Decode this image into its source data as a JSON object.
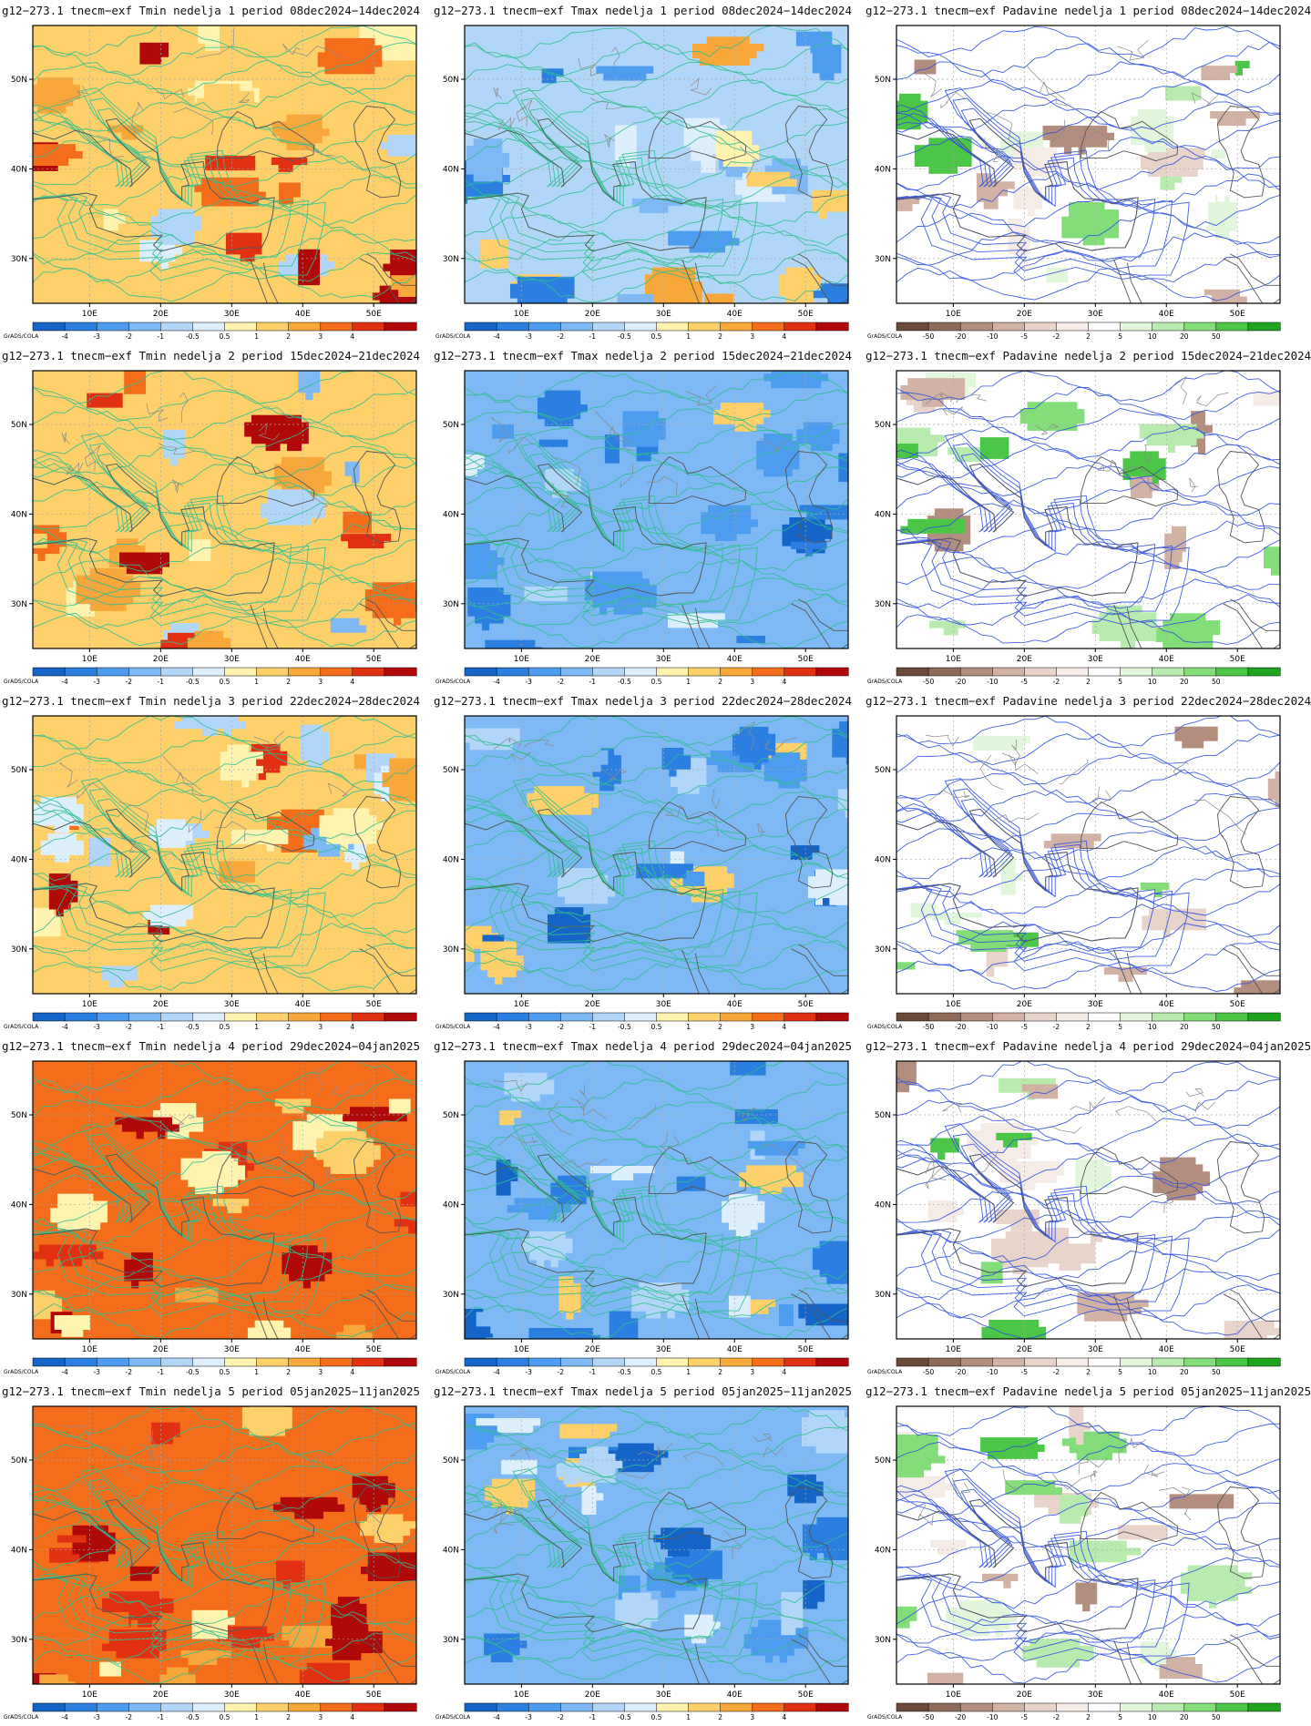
{
  "credit": "GrADS/COLA",
  "axes": {
    "lat_labels": [
      "30N",
      "40N",
      "50N"
    ],
    "lon_labels": [
      "10E",
      "20E",
      "30E",
      "40E",
      "50E"
    ]
  },
  "scales": {
    "temp": {
      "labels": [
        "-4",
        "-3",
        "-2",
        "-1",
        "-0.5",
        "0.5",
        "1",
        "2",
        "3",
        "4"
      ],
      "colors": [
        "#1565c8",
        "#2a7fe0",
        "#4d9cf0",
        "#7fb9f5",
        "#b2d6f8",
        "#ddeefc",
        "#fff3b0",
        "#fdd06a",
        "#f8a73a",
        "#f46d1a",
        "#e23112",
        "#b0090a"
      ]
    },
    "precip": {
      "labels": [
        "-50",
        "-20",
        "-10",
        "-5",
        "-2",
        "2",
        "5",
        "10",
        "20",
        "50"
      ],
      "colors": [
        "#6b4a3a",
        "#8f6a58",
        "#b38d7d",
        "#d2b2a4",
        "#e8d4cb",
        "#f6ece7",
        "#ffffff",
        "#e2f6dc",
        "#b8ecae",
        "#83dd78",
        "#4cc646",
        "#1fa41f"
      ]
    }
  },
  "rows": [
    {
      "tmin": {
        "title": "g12−273.1 tnecm−exf Tmin nedelja 1 period 08dec2024−14dec2024"
      },
      "tmax": {
        "title": "g12−273.1 tnecm−exf Tmax nedelja 1 period 08dec2024−14dec2024"
      },
      "prec": {
        "title": "g12−273.1 tnecm−exf Padavine nedelja 1 period 08dec2024−14dec2024"
      }
    },
    {
      "tmin": {
        "title": "g12−273.1 tnecm−exf Tmin nedelja 2 period 15dec2024−21dec2024"
      },
      "tmax": {
        "title": "g12−273.1 tnecm−exf Tmax nedelja 2 period 15dec2024−21dec2024"
      },
      "prec": {
        "title": "g12−273.1 tnecm−exf Padavine nedelja 2 period 15dec2024−21dec2024"
      }
    },
    {
      "tmin": {
        "title": "g12−273.1 tnecm−exf Tmin nedelja 3 period 22dec2024−28dec2024"
      },
      "tmax": {
        "title": "g12−273.1 tnecm−exf Tmax nedelja 3 period 22dec2024−28dec2024"
      },
      "prec": {
        "title": "g12−273.1 tnecm−exf Padavine nedelja 3 period 22dec2024−28dec2024"
      }
    },
    {
      "tmin": {
        "title": "g12−273.1 tnecm−exf Tmin nedelja 4 period 29dec2024−04jan2025"
      },
      "tmax": {
        "title": "g12−273.1 tnecm−exf Tmax nedelja 4 period 29dec2024−04jan2025"
      },
      "prec": {
        "title": "g12−273.1 tnecm−exf Padavine nedelja 4 period 29dec2024−04jan2025"
      }
    },
    {
      "tmin": {
        "title": "g12−273.1 tnecm−exf Tmin nedelja 5 period 05jan2025−11jan2025"
      },
      "tmax": {
        "title": "g12−273.1 tnecm−exf Tmax nedelja 5 period 05jan2025−11jan2025"
      },
      "prec": {
        "title": "g12−273.1 tnecm−exf Padavine nedelja 5 period 05jan2025−11jan2025"
      }
    }
  ]
}
